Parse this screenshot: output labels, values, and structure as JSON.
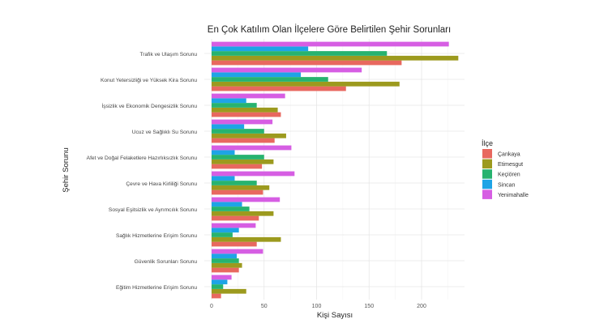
{
  "chart_data": {
    "type": "bar",
    "orientation": "horizontal",
    "title": "En Çok Katılım Olan İlçelere Göre Belirtilen Şehir Sorunları",
    "xlabel": "Kişi Sayısı",
    "ylabel": "Şehir Sorunu",
    "xlim": [
      0,
      240
    ],
    "x_ticks": [
      0,
      50,
      100,
      150,
      200
    ],
    "grid": true,
    "legend": {
      "title": "İlçe",
      "position": "right"
    },
    "categories": [
      "Trafik ve Ulaşım Sorunu",
      "Konut Yetersizliği ve Yüksek Kira Sorunu",
      "İşsizlik ve Ekonomik Dengesizlik Sorunu",
      "Ucuz ve Sağlıklı Su Sorunu",
      "Afet ve Doğal Felaketlere Hazırlıksızlık Sorunu",
      "Çevre ve Hava Kirliliği Sorunu",
      "Sosyal Eşitsizlik ve Ayrımcılık Sorunu",
      "Sağlık Hizmetlerine Erişim Sorunu",
      "Güvenlik Sorunları Sorunu",
      "Eğitim Hizmetlerine Erişim Sorunu"
    ],
    "series": [
      {
        "name": "Çankaya",
        "color": "#E8685F",
        "values": [
          181,
          128,
          66,
          60,
          48,
          49,
          45,
          43,
          26,
          9
        ]
      },
      {
        "name": "Etimesgut",
        "color": "#9C9A1E",
        "values": [
          235,
          179,
          63,
          71,
          59,
          55,
          59,
          66,
          29,
          33
        ]
      },
      {
        "name": "Keçiören",
        "color": "#27B36F",
        "values": [
          167,
          111,
          43,
          50,
          50,
          43,
          36,
          20,
          26,
          11
        ]
      },
      {
        "name": "Sincan",
        "color": "#1EA4E6",
        "values": [
          92,
          85,
          33,
          31,
          22,
          22,
          29,
          26,
          24,
          15
        ]
      },
      {
        "name": "Yenimahalle",
        "color": "#D65EE3",
        "values": [
          226,
          143,
          70,
          58,
          76,
          79,
          65,
          42,
          49,
          19
        ]
      }
    ]
  }
}
